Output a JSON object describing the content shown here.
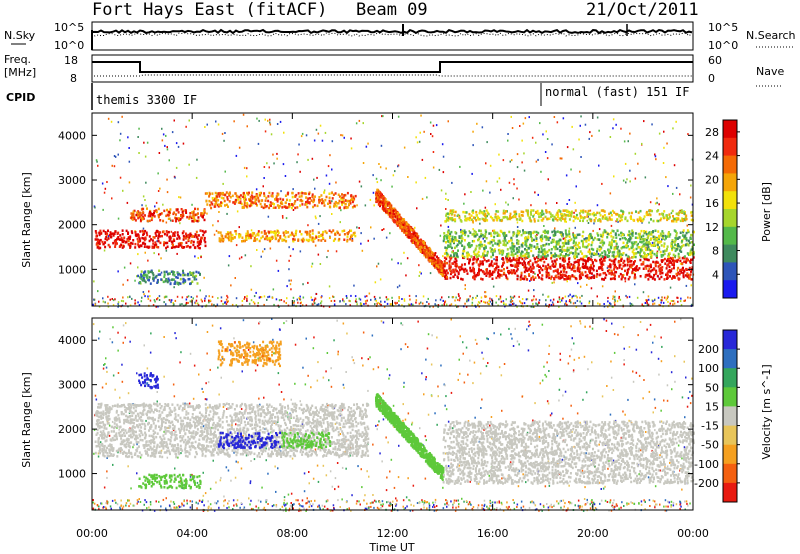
{
  "header": {
    "station": "Fort Hays East (fitACF)",
    "beam": "Beam 09",
    "date": "21/Oct/2011"
  },
  "strip_panels": {
    "nsky_label": "N.Sky",
    "nsky_top": "10^5",
    "nsky_bottom": "10^0",
    "nsearch_top": "10^5",
    "nsearch_bottom": "10^0",
    "nsearch_label": "N.Search",
    "freq_label_1": "Freq.",
    "freq_label_2": "[MHz]",
    "freq_top": "18",
    "freq_bottom": "8",
    "nave_top": "60",
    "nave_bottom": "0",
    "nave_label": "Nave",
    "cpid_label": "CPID",
    "cpid_1": "themis 3300 IF",
    "cpid_2": "normal (fast) 151 IF"
  },
  "chart_data": [
    {
      "type": "heatmap",
      "name": "power",
      "ylabel": "Slant Range [km]",
      "xlabel": "Time UT",
      "x_ticks": [
        "00:00",
        "04:00",
        "08:00",
        "12:00",
        "16:00",
        "20:00",
        "00:00"
      ],
      "x_range_hours": [
        0,
        24
      ],
      "y_ticks": [
        1000,
        2000,
        3000,
        4000
      ],
      "ylim": [
        180,
        4500
      ],
      "colorbar": {
        "label": "Power [dB]",
        "ticks": [
          4,
          8,
          12,
          16,
          20,
          24,
          28
        ],
        "range": [
          0,
          30
        ],
        "colors": [
          "#1a1aee",
          "#2e55b8",
          "#3f8a5e",
          "#54b94a",
          "#a6d62c",
          "#f2e10a",
          "#f5a508",
          "#f46a05",
          "#f02a0e",
          "#dd0000"
        ]
      },
      "features": [
        {
          "t": [
            0.1,
            4.5
          ],
          "r": [
            1500,
            1900
          ],
          "level": 28
        },
        {
          "t": [
            1.5,
            4.5
          ],
          "r": [
            2100,
            2400
          ],
          "level": 24
        },
        {
          "t": [
            4.5,
            10.5
          ],
          "r": [
            2400,
            2750
          ],
          "level": 22
        },
        {
          "t": [
            5.0,
            10.5
          ],
          "r": [
            1650,
            1900
          ],
          "level": 20
        },
        {
          "t": [
            11.3,
            14.0
          ],
          "r": [
            1000,
            2700
          ],
          "level": 24
        },
        {
          "t": [
            14.0,
            24.0
          ],
          "r": [
            800,
            1300
          ],
          "level": 28
        },
        {
          "t": [
            14.0,
            24.0
          ],
          "r": [
            1300,
            1900
          ],
          "level": 12
        },
        {
          "t": [
            14.0,
            24.0
          ],
          "r": [
            2100,
            2350
          ],
          "level": 16
        },
        {
          "t": [
            1.8,
            4.3
          ],
          "r": [
            700,
            1000
          ],
          "level": 8
        }
      ]
    },
    {
      "type": "heatmap",
      "name": "velocity",
      "ylabel": "Slant Range [km]",
      "xlabel": "Time UT",
      "x_ticks": [
        "00:00",
        "04:00",
        "08:00",
        "12:00",
        "16:00",
        "20:00",
        "00:00"
      ],
      "x_range_hours": [
        0,
        24
      ],
      "y_ticks": [
        1000,
        2000,
        3000,
        4000
      ],
      "ylim": [
        180,
        4500
      ],
      "colorbar": {
        "label": "Velocity [m s^-1]",
        "ticks": [
          200,
          100,
          50,
          15,
          -15,
          -50,
          -100,
          -200
        ],
        "range": [
          -250,
          250
        ],
        "colors": [
          "#2828d8",
          "#2e6fbf",
          "#34a65c",
          "#5ec93a",
          "#c8c8c0",
          "#e8c55a",
          "#f5a020",
          "#f46010",
          "#e81a10"
        ]
      },
      "features": [
        {
          "t": [
            0.1,
            11.0
          ],
          "r": [
            1400,
            2600
          ],
          "level": 0
        },
        {
          "t": [
            5.0,
            7.5
          ],
          "r": [
            1600,
            1950
          ],
          "level": 220
        },
        {
          "t": [
            7.5,
            9.5
          ],
          "r": [
            1600,
            1950
          ],
          "level": 60
        },
        {
          "t": [
            5.0,
            7.5
          ],
          "r": [
            3450,
            4000
          ],
          "level": -120
        },
        {
          "t": [
            1.8,
            4.3
          ],
          "r": [
            700,
            1000
          ],
          "level": 60
        },
        {
          "t": [
            11.3,
            14.0
          ],
          "r": [
            1000,
            2700
          ],
          "level": 55
        },
        {
          "t": [
            14.0,
            24.0
          ],
          "r": [
            800,
            2200
          ],
          "level": 0
        },
        {
          "t": [
            1.8,
            2.6
          ],
          "r": [
            2950,
            3300
          ],
          "level": 210
        }
      ]
    }
  ]
}
